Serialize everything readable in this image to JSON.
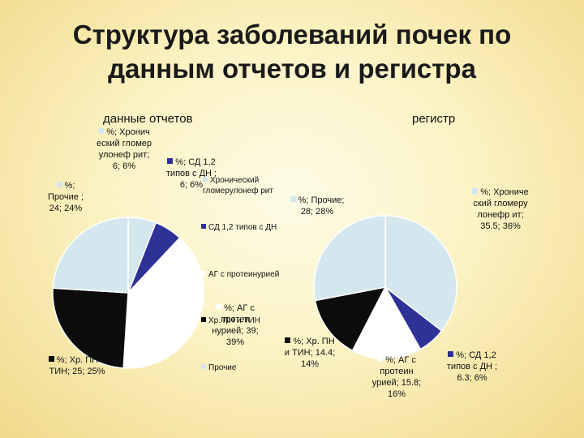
{
  "page_title_line1": "Структура заболеваний почек по",
  "page_title_line2": "данным отчетов и регистра",
  "colors": {
    "glomerulonephritis": "#d4e6ee",
    "diabetes": "#2e3196",
    "hypertension": "#ffffff",
    "pyelonephritis": "#0c0c0c",
    "other": "#d4e6ee"
  },
  "chart_data": [
    {
      "type": "pie",
      "title": "данные отчетов",
      "categories": [
        "Хронический гломерулонефрит",
        "СД 1,2 типов с ДН",
        "АГ с протеинурией",
        "Хр. ПН и ТИН",
        "Прочие"
      ],
      "values": [
        6,
        6,
        39,
        25,
        24
      ],
      "percents": [
        6,
        6,
        39,
        25,
        24
      ],
      "labels": [
        "%; Хронич еский гломер улонеф рит; 6; 6%",
        "%; СД 1,2 типов с ДН ; 6; 6%",
        "%; АГ с протеи нурией; 39; 39%",
        "%; Хр. ПН и ТИН; 25; 25%",
        "%; Прочие ; 24; 24%"
      ],
      "legend": [
        "Хронический гломерулонеф рит",
        "СД 1,2 типов с ДН",
        "АГ с протеинурией",
        "Хр. ПН и ТИН",
        "Прочие"
      ]
    },
    {
      "type": "pie",
      "title": "регистр",
      "categories": [
        "Хронический гломерулонефрит",
        "СД 1,2 типов с ДН",
        "АГ с протеинурией",
        "Хр. ПН и ТИН",
        "Прочие"
      ],
      "values": [
        35.5,
        6.3,
        15.8,
        14.4,
        28
      ],
      "percents": [
        36,
        6,
        16,
        14,
        28
      ],
      "labels": [
        "%; Хрониче ский гломеру лонефр ит; 35.5; 36%",
        "%; СД 1,2 типов с ДН ; 6.3; 6%",
        "%; АГ с протеин урией; 15.8; 16%",
        "%; Хр. ПН и ТИН; 14.4; 14%",
        "%; Прочие; 28; 28%"
      ]
    }
  ]
}
